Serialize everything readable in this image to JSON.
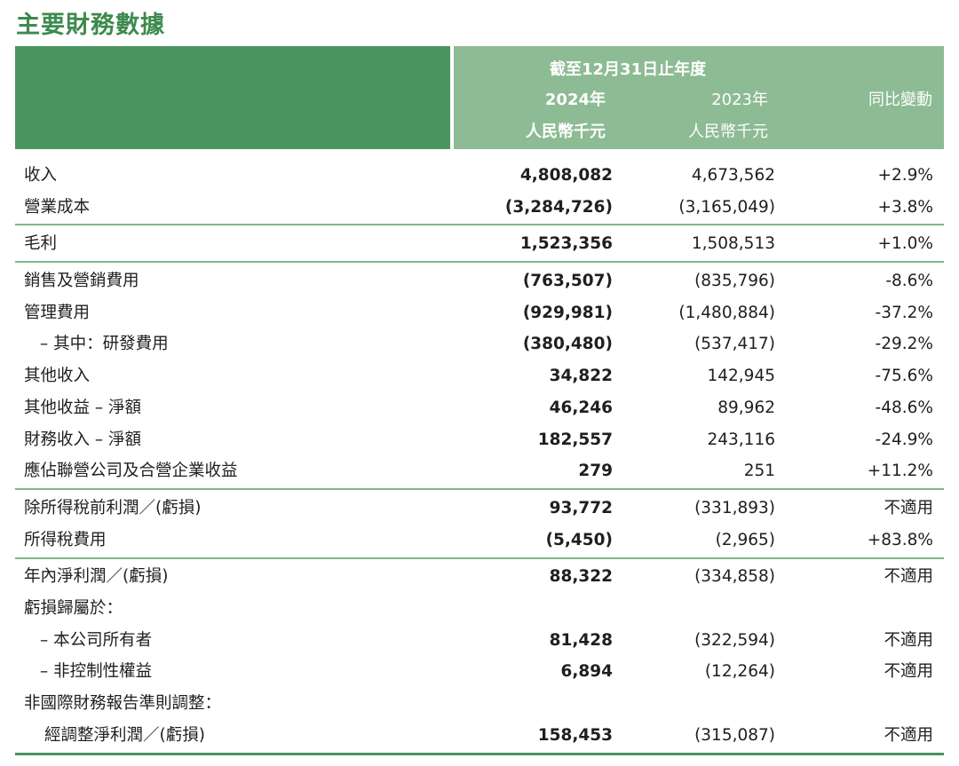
{
  "title": "主要財務數據",
  "header": {
    "period": "截至12月31日止年度",
    "col_2024_year": "2024年",
    "col_2024_unit": "人民幣千元",
    "col_2023_year": "2023年",
    "col_2023_unit": "人民幣千元",
    "col_yoy": "同比變動"
  },
  "rows": [
    {
      "label": "收入",
      "v2024": "4,808,082",
      "v2023": "4,673,562",
      "yoy": "+2.9%"
    },
    {
      "label": "營業成本",
      "v2024": "(3,284,726)",
      "v2023": "(3,165,049)",
      "yoy": "+3.8%"
    },
    {
      "label": "毛利",
      "v2024": "1,523,356",
      "v2023": "1,508,513",
      "yoy": "+1.0%"
    },
    {
      "label": "銷售及營銷費用",
      "v2024": "(763,507)",
      "v2023": "(835,796)",
      "yoy": "-8.6%"
    },
    {
      "label": "管理費用",
      "v2024": "(929,981)",
      "v2023": "(1,480,884)",
      "yoy": "-37.2%"
    },
    {
      "label": "– 其中：研發費用",
      "v2024": "(380,480)",
      "v2023": "(537,417)",
      "yoy": "-29.2%"
    },
    {
      "label": "其他收入",
      "v2024": "34,822",
      "v2023": "142,945",
      "yoy": "-75.6%"
    },
    {
      "label": "其他收益 – 淨額",
      "v2024": "46,246",
      "v2023": "89,962",
      "yoy": "-48.6%"
    },
    {
      "label": "財務收入 – 淨額",
      "v2024": "182,557",
      "v2023": "243,116",
      "yoy": "-24.9%"
    },
    {
      "label": "應佔聯營公司及合營企業收益",
      "v2024": "279",
      "v2023": "251",
      "yoy": "+11.2%"
    },
    {
      "label": "除所得稅前利潤／(虧損)",
      "v2024": "93,772",
      "v2023": "(331,893)",
      "yoy": "不適用"
    },
    {
      "label": "所得稅費用",
      "v2024": "(5,450)",
      "v2023": "(2,965)",
      "yoy": "+83.8%"
    },
    {
      "label": "年內淨利潤／(虧損)",
      "v2024": "88,322",
      "v2023": "(334,858)",
      "yoy": "不適用"
    },
    {
      "label": "虧損歸屬於：",
      "v2024": "",
      "v2023": "",
      "yoy": ""
    },
    {
      "label": "– 本公司所有者",
      "v2024": "81,428",
      "v2023": "(322,594)",
      "yoy": "不適用"
    },
    {
      "label": "– 非控制性權益",
      "v2024": "6,894",
      "v2023": "(12,264)",
      "yoy": "不適用"
    },
    {
      "label": "非國際財務報告準則調整：",
      "v2024": "",
      "v2023": "",
      "yoy": ""
    },
    {
      "label": "經調整淨利潤／(虧損)",
      "v2024": "158,453",
      "v2023": "(315,087)",
      "yoy": "不適用"
    }
  ]
}
